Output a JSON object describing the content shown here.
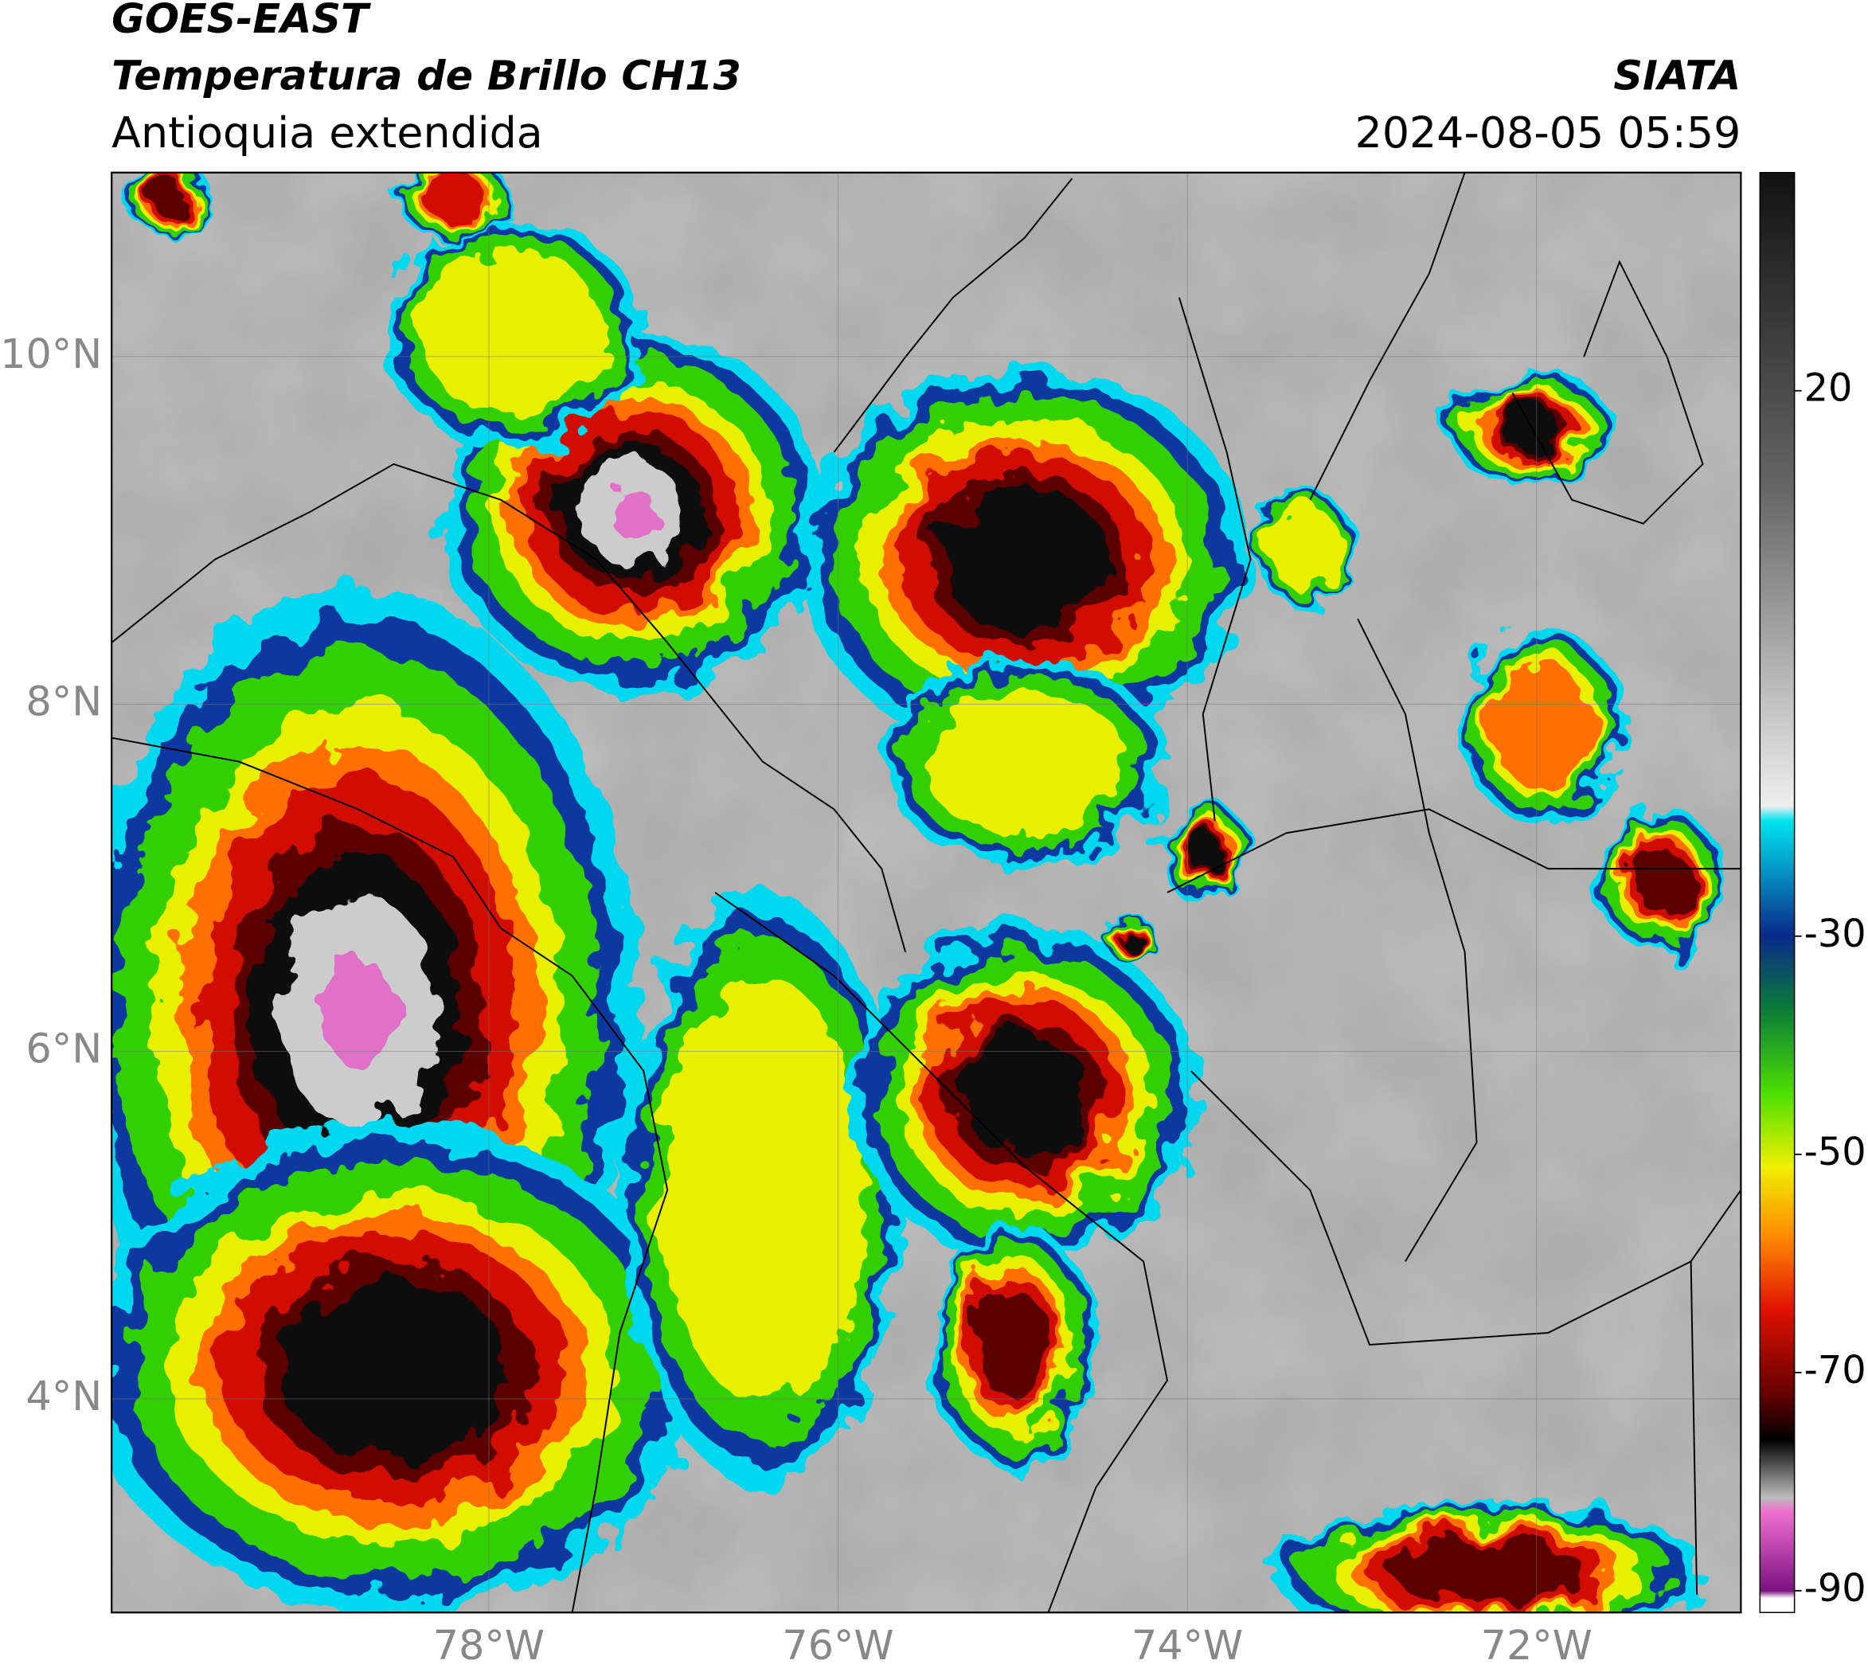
{
  "header": {
    "title": "GOES-EAST",
    "subtitle": "Temperatura de Brillo CH13",
    "region": "Antioquia extendida",
    "source": "SIATA",
    "datetime": "2024-08-05 05:59"
  },
  "map": {
    "xlim": [
      -80.16,
      -70.83
    ],
    "ylim": [
      2.77,
      11.06
    ],
    "grid": true,
    "xticks": [
      {
        "value": -78,
        "label": "78°W"
      },
      {
        "value": -76,
        "label": "76°W"
      },
      {
        "value": -74,
        "label": "74°W"
      },
      {
        "value": -72,
        "label": "72°W"
      }
    ],
    "yticks": [
      {
        "value": 4,
        "label": "4°N"
      },
      {
        "value": 6,
        "label": "6°N"
      },
      {
        "value": 8,
        "label": "8°N"
      },
      {
        "value": 10,
        "label": "10°N"
      }
    ]
  },
  "colorbar": {
    "lim": [
      -92,
      40
    ],
    "ticks": [
      20,
      -30,
      -50,
      -70,
      -90
    ]
  }
}
